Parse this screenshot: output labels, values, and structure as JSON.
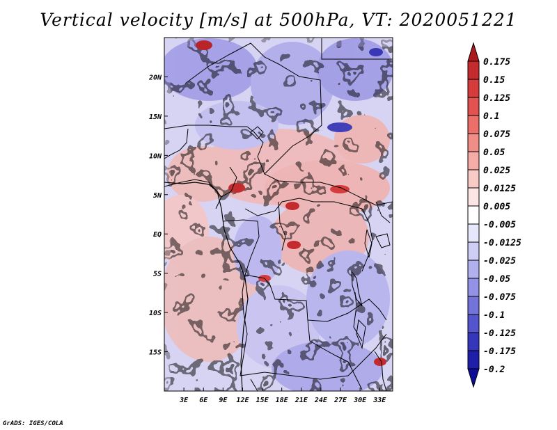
{
  "title": "Vertical velocity [m/s] at 500hPa, VT: 2020051221",
  "credit": "GrADS: IGES/COLA",
  "map": {
    "region": "Central Africa",
    "lon_range": [
      0,
      35
    ],
    "lat_range": [
      -20,
      25
    ],
    "x_ticks": [
      {
        "lon": 3,
        "label": "3E"
      },
      {
        "lon": 6,
        "label": "6E"
      },
      {
        "lon": 9,
        "label": "9E"
      },
      {
        "lon": 12,
        "label": "12E"
      },
      {
        "lon": 15,
        "label": "15E"
      },
      {
        "lon": 18,
        "label": "18E"
      },
      {
        "lon": 21,
        "label": "21E"
      },
      {
        "lon": 24,
        "label": "24E"
      },
      {
        "lon": 27,
        "label": "27E"
      },
      {
        "lon": 30,
        "label": "30E"
      },
      {
        "lon": 33,
        "label": "33E"
      }
    ],
    "y_ticks": [
      {
        "lat": 20,
        "label": "20N"
      },
      {
        "lat": 15,
        "label": "15N"
      },
      {
        "lat": 10,
        "label": "10N"
      },
      {
        "lat": 5,
        "label": "5N"
      },
      {
        "lat": 0,
        "label": "EQ"
      },
      {
        "lat": -5,
        "label": "5S"
      },
      {
        "lat": -10,
        "label": "10S"
      },
      {
        "lat": -15,
        "label": "15S"
      }
    ]
  },
  "colorbar": {
    "labels": [
      "0.175",
      "0.15",
      "0.125",
      "0.1",
      "0.075",
      "0.05",
      "0.025",
      "0.0125",
      "0.005",
      "-0.005",
      "-0.0125",
      "-0.025",
      "-0.05",
      "-0.075",
      "-0.1",
      "-0.125",
      "-0.175",
      "-0.2"
    ],
    "colors": [
      "#ac1a1d",
      "#c42b2e",
      "#d63c3b",
      "#e25250",
      "#ec6f6a",
      "#f18d87",
      "#f5aca6",
      "#f9cbc6",
      "#fce6e3",
      "#ffffff",
      "#e7e7fb",
      "#cdcdf6",
      "#b1b1f0",
      "#9292e6",
      "#7373da",
      "#5454cc",
      "#3636bb",
      "#1e1ea8",
      "#0c0c96"
    ]
  }
}
